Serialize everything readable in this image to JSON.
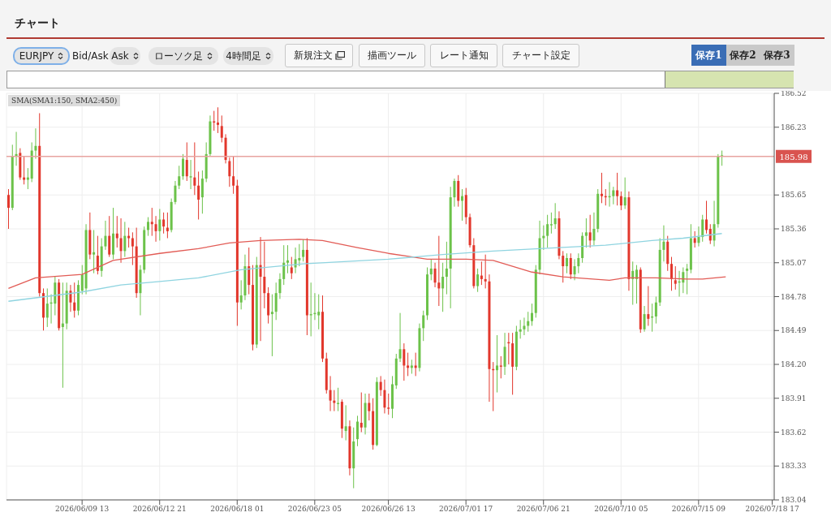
{
  "chart_data": {
    "type": "candlestick",
    "title": "チャート",
    "annotations": [
      "EURJPY",
      "Bid/Ask",
      "Ask",
      "ローソク足",
      "4時間足",
      "新規注文",
      "描画ツール",
      "レート通知",
      "チャート設定",
      "保存1",
      "保存2",
      "保存3",
      "SMA(SMA1:150, SMA2:450)"
    ],
    "categories": [
      null,
      null,
      null,
      null,
      null,
      null,
      null,
      null,
      null,
      null,
      null,
      null,
      null,
      null,
      null,
      null,
      null,
      null,
      null,
      "2026/06/09 13",
      null,
      null,
      null,
      null,
      null,
      null,
      null,
      null,
      null,
      null,
      null,
      null,
      null,
      null,
      null,
      null,
      null,
      null,
      null,
      "2026/06/12 21",
      null,
      null,
      null,
      null,
      null,
      null,
      null,
      null,
      null,
      null,
      null,
      null,
      null,
      null,
      null,
      null,
      null,
      null,
      null,
      "2026/06/18 01",
      null,
      null,
      null,
      null,
      null,
      null,
      null,
      null,
      null,
      null,
      null,
      null,
      null,
      null,
      null,
      null,
      null,
      null,
      null,
      "2026/06/23 05",
      null,
      null,
      null,
      null,
      null,
      null,
      null,
      null,
      null,
      null,
      null,
      null,
      null,
      null,
      null,
      null,
      null,
      null,
      "2026/06/26 13",
      null,
      null,
      null,
      null,
      null,
      null,
      null,
      null,
      null,
      null,
      null,
      null,
      null,
      null,
      null,
      null,
      null,
      null,
      null,
      "2026/07/01 17",
      null,
      null,
      null,
      null,
      null,
      null,
      null,
      null,
      null,
      null,
      null,
      null,
      null,
      null,
      null,
      null,
      null,
      null,
      null,
      "2026/07/06 21",
      null,
      null,
      null,
      null,
      null,
      null,
      null,
      null,
      null,
      null,
      null,
      null,
      null,
      null,
      null,
      null,
      null,
      null,
      null,
      "2026/07/10 05",
      null,
      null,
      null,
      null,
      null,
      null,
      null,
      null,
      null,
      null,
      null,
      null,
      null,
      null,
      null,
      null,
      null,
      null,
      null,
      "2026/07/15 09",
      null,
      null,
      null,
      null,
      null,
      null,
      null,
      null,
      null,
      null,
      null,
      null,
      null,
      null,
      null,
      null,
      null,
      null,
      "2026/07/18 17"
    ],
    "ohlc": [
      [
        185.65,
        185.7,
        185.36,
        185.54
      ],
      [
        185.54,
        186.08,
        185.52,
        185.98
      ],
      [
        185.98,
        186.19,
        185.9,
        186.0
      ],
      [
        186.01,
        186.05,
        185.78,
        185.8
      ],
      [
        185.8,
        185.98,
        185.74,
        185.78
      ],
      [
        185.78,
        185.88,
        185.7,
        185.8
      ],
      [
        185.79,
        186.1,
        185.76,
        186.03
      ],
      [
        186.03,
        186.22,
        185.96,
        186.07
      ],
      [
        186.07,
        186.35,
        184.78,
        184.81
      ],
      [
        184.81,
        184.85,
        184.49,
        184.6
      ],
      [
        184.6,
        184.85,
        184.52,
        184.72
      ],
      [
        184.72,
        184.8,
        184.55,
        184.73
      ],
      [
        184.72,
        184.95,
        184.62,
        184.9
      ],
      [
        184.9,
        184.93,
        184.49,
        184.51
      ],
      [
        184.52,
        184.9,
        184.0,
        184.55
      ],
      [
        184.55,
        184.9,
        184.5,
        184.83
      ],
      [
        184.83,
        184.88,
        184.65,
        184.73
      ],
      [
        184.73,
        184.9,
        184.6,
        184.66
      ],
      [
        184.66,
        184.92,
        184.62,
        184.88
      ],
      [
        184.83,
        185.05,
        184.8,
        184.97
      ],
      [
        184.85,
        185.4,
        184.8,
        185.35
      ],
      [
        185.35,
        185.5,
        185.1,
        185.14
      ],
      [
        185.14,
        185.35,
        184.98,
        185.16
      ],
      [
        185.13,
        185.3,
        184.97,
        185.0
      ],
      [
        185.0,
        185.28,
        184.95,
        185.21
      ],
      [
        185.21,
        185.43,
        185.18,
        185.3
      ],
      [
        185.3,
        185.47,
        185.12,
        185.14
      ],
      [
        185.14,
        185.54,
        185.1,
        185.32
      ],
      [
        185.32,
        185.47,
        185.2,
        185.28
      ],
      [
        185.28,
        185.45,
        185.07,
        185.17
      ],
      [
        185.17,
        185.42,
        185.12,
        185.3
      ],
      [
        185.3,
        185.37,
        185.2,
        185.28
      ],
      [
        185.28,
        185.33,
        185.05,
        185.21
      ],
      [
        185.21,
        185.37,
        184.77,
        184.81
      ],
      [
        184.81,
        185.05,
        184.62,
        185.01
      ],
      [
        185.01,
        185.38,
        184.98,
        185.35
      ],
      [
        185.35,
        185.46,
        185.3,
        185.42
      ],
      [
        185.42,
        185.54,
        185.3,
        185.4
      ],
      [
        185.4,
        185.47,
        185.25,
        185.34
      ],
      [
        185.34,
        185.53,
        185.26,
        185.44
      ],
      [
        185.44,
        185.5,
        185.32,
        185.38
      ],
      [
        185.37,
        185.5,
        185.28,
        185.34
      ],
      [
        185.35,
        185.62,
        185.33,
        185.59
      ],
      [
        185.59,
        185.77,
        185.57,
        185.73
      ],
      [
        185.73,
        185.9,
        185.7,
        185.81
      ],
      [
        185.81,
        186.0,
        185.78,
        185.96
      ],
      [
        185.95,
        186.1,
        185.77,
        185.81
      ],
      [
        185.8,
        185.95,
        185.7,
        185.81
      ],
      [
        185.8,
        186.1,
        185.65,
        185.73
      ],
      [
        185.73,
        185.85,
        185.44,
        185.61
      ],
      [
        185.63,
        185.86,
        185.49,
        185.79
      ],
      [
        185.79,
        186.1,
        185.76,
        186.0
      ],
      [
        186.0,
        186.33,
        185.98,
        186.28
      ],
      [
        186.28,
        186.37,
        186.2,
        186.27
      ],
      [
        186.27,
        186.4,
        186.18,
        186.25
      ],
      [
        186.24,
        186.33,
        186.1,
        186.14
      ],
      [
        186.14,
        186.17,
        185.92,
        185.95
      ],
      [
        185.94,
        185.97,
        185.72,
        185.81
      ],
      [
        185.81,
        185.98,
        185.66,
        185.73
      ],
      [
        185.73,
        185.78,
        184.53,
        184.73
      ],
      [
        184.73,
        184.92,
        184.67,
        184.79
      ],
      [
        184.79,
        185.14,
        184.75,
        185.04
      ],
      [
        185.04,
        185.2,
        184.8,
        184.88
      ],
      [
        184.88,
        185.05,
        184.32,
        184.37
      ],
      [
        184.37,
        185.12,
        184.34,
        185.05
      ],
      [
        185.05,
        185.29,
        184.4,
        184.95
      ],
      [
        184.95,
        185.25,
        184.68,
        184.81
      ],
      [
        184.81,
        184.86,
        184.55,
        184.62
      ],
      [
        184.63,
        184.8,
        184.27,
        184.65
      ],
      [
        184.65,
        184.9,
        184.58,
        184.81
      ],
      [
        184.81,
        184.98,
        184.76,
        184.93
      ],
      [
        184.93,
        185.22,
        184.88,
        185.07
      ],
      [
        185.07,
        185.22,
        184.98,
        185.09
      ],
      [
        185.03,
        185.12,
        184.93,
        184.98
      ],
      [
        185.03,
        185.2,
        184.98,
        185.1
      ],
      [
        185.09,
        185.23,
        185.04,
        185.11
      ],
      [
        185.12,
        185.27,
        185.08,
        185.18
      ],
      [
        185.18,
        185.28,
        184.45,
        184.62
      ],
      [
        184.62,
        184.9,
        184.44,
        184.63
      ],
      [
        184.63,
        184.81,
        184.58,
        184.64
      ],
      [
        184.62,
        184.8,
        184.5,
        184.65
      ],
      [
        184.65,
        184.79,
        184.22,
        184.25
      ],
      [
        184.25,
        184.3,
        183.95,
        183.98
      ],
      [
        183.98,
        184.1,
        183.8,
        183.89
      ],
      [
        183.89,
        183.98,
        183.8,
        183.87
      ],
      [
        183.86,
        184.0,
        183.8,
        183.87
      ],
      [
        183.88,
        183.9,
        183.57,
        183.65
      ],
      [
        183.63,
        183.85,
        183.55,
        183.67
      ],
      [
        183.67,
        183.72,
        183.25,
        183.31
      ],
      [
        183.31,
        183.66,
        183.14,
        183.54
      ],
      [
        183.56,
        183.76,
        183.5,
        183.71
      ],
      [
        183.7,
        183.96,
        183.62,
        183.66
      ],
      [
        183.66,
        183.95,
        183.6,
        183.87
      ],
      [
        183.87,
        183.95,
        183.72,
        183.8
      ],
      [
        183.8,
        183.91,
        183.47,
        183.51
      ],
      [
        183.51,
        184.09,
        183.5,
        184.05
      ],
      [
        184.05,
        184.1,
        183.93,
        183.98
      ],
      [
        183.98,
        184.07,
        183.78,
        183.83
      ],
      [
        183.83,
        183.95,
        183.77,
        183.82
      ],
      [
        183.82,
        184.1,
        183.74,
        184.03
      ],
      [
        184.02,
        184.29,
        183.99,
        184.25
      ],
      [
        184.25,
        184.64,
        184.22,
        184.33
      ],
      [
        184.33,
        184.38,
        184.06,
        184.19
      ],
      [
        184.19,
        184.3,
        184.1,
        184.17
      ],
      [
        184.17,
        184.24,
        184.12,
        184.19
      ],
      [
        184.19,
        184.3,
        184.1,
        184.17
      ],
      [
        184.17,
        184.55,
        184.14,
        184.51
      ],
      [
        184.51,
        184.66,
        184.4,
        184.62
      ],
      [
        184.62,
        185.03,
        184.58,
        184.97
      ],
      [
        184.97,
        185.1,
        184.92,
        185.02
      ],
      [
        185.02,
        185.07,
        184.86,
        184.9
      ],
      [
        184.9,
        185.3,
        184.7,
        184.85
      ],
      [
        184.85,
        185.07,
        184.65,
        184.95
      ],
      [
        184.95,
        185.25,
        184.8,
        185.02
      ],
      [
        185.02,
        185.72,
        184.68,
        185.63
      ],
      [
        185.63,
        185.79,
        185.55,
        185.77
      ],
      [
        185.77,
        185.82,
        185.55,
        185.6
      ],
      [
        185.6,
        185.7,
        185.43,
        185.64
      ],
      [
        185.65,
        185.71,
        185.4,
        185.46
      ],
      [
        185.46,
        185.49,
        185.2,
        185.22
      ],
      [
        185.22,
        185.28,
        184.85,
        184.87
      ],
      [
        184.87,
        185.02,
        184.82,
        184.97
      ],
      [
        184.96,
        185.08,
        184.88,
        184.93
      ],
      [
        184.93,
        185.14,
        184.85,
        184.91
      ],
      [
        184.91,
        184.97,
        183.88,
        184.16
      ],
      [
        184.16,
        184.22,
        183.8,
        184.15
      ],
      [
        184.15,
        184.45,
        183.96,
        184.19
      ],
      [
        184.19,
        184.27,
        184.08,
        184.18
      ],
      [
        184.18,
        184.47,
        184.11,
        184.35
      ],
      [
        184.39,
        184.47,
        184.2,
        184.38
      ],
      [
        184.38,
        184.47,
        183.94,
        184.18
      ],
      [
        184.18,
        184.53,
        184.15,
        184.48
      ],
      [
        184.48,
        184.58,
        184.42,
        184.5
      ],
      [
        184.5,
        184.6,
        184.45,
        184.53
      ],
      [
        184.53,
        184.65,
        184.48,
        184.57
      ],
      [
        184.57,
        184.72,
        184.53,
        184.64
      ],
      [
        184.64,
        185.05,
        184.6,
        185.01
      ],
      [
        185.01,
        185.43,
        184.97,
        185.28
      ],
      [
        185.28,
        185.39,
        185.18,
        185.3
      ],
      [
        185.3,
        185.48,
        185.2,
        185.4
      ],
      [
        185.39,
        185.5,
        185.32,
        185.4
      ],
      [
        185.4,
        185.58,
        185.36,
        185.45
      ],
      [
        185.45,
        185.51,
        185.1,
        185.13
      ],
      [
        185.13,
        185.17,
        184.9,
        185.04
      ],
      [
        185.04,
        185.15,
        184.98,
        185.11
      ],
      [
        185.11,
        185.15,
        184.93,
        184.97
      ],
      [
        184.97,
        185.1,
        184.92,
        185.04
      ],
      [
        185.04,
        185.15,
        184.98,
        185.11
      ],
      [
        185.11,
        185.33,
        185.07,
        185.3
      ],
      [
        185.3,
        185.45,
        185.2,
        185.33
      ],
      [
        185.33,
        185.48,
        185.2,
        185.26
      ],
      [
        185.26,
        185.5,
        185.22,
        185.36
      ],
      [
        185.36,
        185.7,
        185.33,
        185.66
      ],
      [
        185.66,
        185.84,
        185.58,
        185.64
      ],
      [
        185.64,
        185.7,
        185.56,
        185.63
      ],
      [
        185.63,
        185.76,
        185.55,
        185.64
      ],
      [
        185.64,
        185.72,
        185.57,
        185.69
      ],
      [
        185.69,
        185.84,
        185.56,
        185.64
      ],
      [
        185.64,
        185.68,
        185.52,
        185.56
      ],
      [
        185.56,
        185.8,
        185.53,
        185.63
      ],
      [
        185.63,
        185.68,
        184.83,
        184.93
      ],
      [
        184.93,
        185.08,
        184.71,
        185.0
      ],
      [
        184.93,
        185.05,
        184.72,
        185.01
      ],
      [
        185.01,
        185.03,
        184.47,
        184.5
      ],
      [
        184.5,
        184.7,
        184.48,
        184.63
      ],
      [
        184.63,
        184.87,
        184.53,
        184.59
      ],
      [
        184.6,
        184.72,
        184.48,
        184.61
      ],
      [
        184.61,
        184.78,
        184.55,
        184.73
      ],
      [
        184.73,
        185.28,
        184.7,
        185.18
      ],
      [
        185.18,
        185.39,
        185.08,
        185.25
      ],
      [
        185.25,
        185.3,
        185.0,
        185.06
      ],
      [
        185.06,
        185.12,
        184.83,
        184.93
      ],
      [
        184.92,
        185.04,
        184.84,
        184.89
      ],
      [
        184.9,
        185.0,
        184.78,
        184.91
      ],
      [
        184.9,
        185.03,
        184.81,
        184.99
      ],
      [
        185.0,
        185.06,
        184.8,
        185.02
      ],
      [
        185.01,
        185.4,
        184.98,
        185.28
      ],
      [
        185.28,
        185.34,
        185.2,
        185.24
      ],
      [
        185.24,
        185.38,
        185.21,
        185.29
      ],
      [
        185.29,
        185.48,
        185.25,
        185.44
      ],
      [
        185.44,
        185.6,
        185.32,
        185.35
      ],
      [
        185.36,
        185.4,
        185.23,
        185.26
      ],
      [
        185.26,
        185.6,
        185.21,
        185.4
      ],
      [
        185.4,
        186.0,
        185.37,
        185.98
      ],
      [
        185.98,
        186.03,
        185.9,
        185.99
      ],
      null,
      null,
      null,
      null,
      null,
      null,
      null,
      null,
      null,
      null,
      null,
      null,
      null
    ],
    "colors": [
      "#e2372c",
      "#6cc24a",
      "#6cc24a",
      "#e2372c",
      "#e2372c",
      "#6cc24a",
      "#6cc24a",
      "#6cc24a",
      "#e2372c",
      "#e2372c",
      "#6cc24a",
      "#6cc24a",
      "#6cc24a",
      "#e2372c",
      "#6cc24a",
      "#6cc24a",
      "#e2372c",
      "#e2372c",
      "#6cc24a",
      "#6cc24a",
      "#6cc24a",
      "#e2372c",
      "#6cc24a",
      "#e2372c",
      "#6cc24a",
      "#6cc24a",
      "#e2372c",
      "#6cc24a",
      "#e2372c",
      "#e2372c",
      "#6cc24a",
      "#e2372c",
      "#e2372c",
      "#e2372c",
      "#6cc24a",
      "#6cc24a",
      "#6cc24a",
      "#e2372c",
      "#e2372c",
      "#6cc24a",
      "#e2372c",
      "#e2372c",
      "#6cc24a",
      "#6cc24a",
      "#6cc24a",
      "#6cc24a",
      "#e2372c",
      "#6cc24a",
      "#e2372c",
      "#e2372c",
      "#6cc24a",
      "#6cc24a",
      "#6cc24a",
      "#e2372c",
      "#e2372c",
      "#e2372c",
      "#e2372c",
      "#e2372c",
      "#e2372c",
      "#e2372c",
      "#6cc24a",
      "#6cc24a",
      "#e2372c",
      "#e2372c",
      "#6cc24a",
      "#e2372c",
      "#e2372c",
      "#e2372c",
      "#6cc24a",
      "#6cc24a",
      "#6cc24a",
      "#6cc24a",
      "#6cc24a",
      "#e2372c",
      "#6cc24a",
      "#6cc24a",
      "#6cc24a",
      "#e2372c",
      "#6cc24a",
      "#6cc24a",
      "#6cc24a",
      "#e2372c",
      "#e2372c",
      "#e2372c",
      "#e2372c",
      "#6cc24a",
      "#e2372c",
      "#6cc24a",
      "#e2372c",
      "#6cc24a",
      "#6cc24a",
      "#e2372c",
      "#6cc24a",
      "#e2372c",
      "#e2372c",
      "#6cc24a",
      "#e2372c",
      "#e2372c",
      "#e2372c",
      "#6cc24a",
      "#6cc24a",
      "#6cc24a",
      "#e2372c",
      "#e2372c",
      "#6cc24a",
      "#e2372c",
      "#6cc24a",
      "#6cc24a",
      "#6cc24a",
      "#6cc24a",
      "#e2372c",
      "#e2372c",
      "#6cc24a",
      "#6cc24a",
      "#6cc24a",
      "#6cc24a",
      "#e2372c",
      "#6cc24a",
      "#e2372c",
      "#e2372c",
      "#e2372c",
      "#6cc24a",
      "#e2372c",
      "#e2372c",
      "#e2372c",
      "#e2372c",
      "#6cc24a",
      "#e2372c",
      "#6cc24a",
      "#e2372c",
      "#e2372c",
      "#6cc24a",
      "#6cc24a",
      "#6cc24a",
      "#6cc24a",
      "#6cc24a",
      "#6cc24a",
      "#6cc24a",
      "#6cc24a",
      "#6cc24a",
      "#6cc24a",
      "#6cc24a",
      "#e2372c",
      "#e2372c",
      "#6cc24a",
      "#e2372c",
      "#6cc24a",
      "#6cc24a",
      "#6cc24a",
      "#6cc24a",
      "#e2372c",
      "#6cc24a",
      "#6cc24a",
      "#e2372c",
      "#e2372c",
      "#6cc24a",
      "#6cc24a",
      "#e2372c",
      "#e2372c",
      "#6cc24a",
      "#e2372c",
      "#6cc24a",
      "#6cc24a",
      "#e2372c",
      "#6cc24a",
      "#e2372c",
      "#6cc24a",
      "#6cc24a",
      "#6cc24a",
      "#6cc24a",
      "#e2372c",
      "#e2372c",
      "#e2372c",
      "#6cc24a",
      "#6cc24a",
      "#6cc24a",
      "#6cc24a",
      "#e2372c",
      "#6cc24a",
      "#6cc24a",
      "#e2372c",
      "#e2372c",
      "#6cc24a",
      "#6cc24a",
      "#6cc24a",
      null,
      null,
      null,
      null,
      null,
      null,
      null,
      null,
      null,
      null,
      null,
      null,
      null
    ],
    "series": [
      {
        "type": "line",
        "color": "#e25b55",
        "values": [
          184.85,
          null,
          null,
          null,
          null,
          null,
          null,
          184.94,
          null,
          null,
          null,
          null,
          null,
          null,
          null,
          null,
          null,
          null,
          null,
          184.97,
          null,
          null,
          null,
          null,
          null,
          null,
          null,
          185.09,
          null,
          null,
          null,
          null,
          null,
          null,
          null,
          null,
          null,
          null,
          null,
          185.15,
          null,
          null,
          null,
          null,
          null,
          null,
          null,
          null,
          null,
          185.19,
          null,
          null,
          null,
          null,
          null,
          null,
          null,
          185.24,
          null,
          null,
          null,
          null,
          null,
          null,
          null,
          185.26,
          null,
          null,
          null,
          null,
          null,
          null,
          null,
          null,
          null,
          185.27,
          null,
          null,
          null,
          null,
          null,
          185.26,
          null,
          null,
          null,
          null,
          null,
          null,
          null,
          null,
          185.2,
          null,
          null,
          null,
          null,
          null,
          null,
          null,
          185.15,
          null,
          null,
          null,
          null,
          null,
          null,
          null,
          null,
          null,
          185.1,
          null,
          null,
          null,
          null,
          null,
          null,
          null,
          null,
          null,
          185.1,
          null,
          null,
          null,
          null,
          null,
          null,
          185.09,
          null,
          null,
          null,
          null,
          null,
          null,
          null,
          null,
          null,
          184.99,
          null,
          null,
          null,
          null,
          null,
          null,
          null,
          184.95,
          null,
          null,
          null,
          null,
          null,
          null,
          null,
          null,
          null,
          null,
          null,
          184.92,
          null,
          null,
          null,
          184.94,
          null,
          null,
          null,
          null,
          null,
          null,
          null,
          184.94,
          null,
          null,
          null,
          null,
          null,
          null,
          null,
          184.93,
          null,
          null,
          null,
          184.93,
          null,
          null,
          null,
          null,
          null,
          184.95,
          null,
          null,
          null,
          null,
          null,
          null,
          null,
          null,
          null,
          null,
          null,
          null
        ]
      },
      {
        "type": "line",
        "color": "#8fd4e0",
        "values": [
          184.74,
          null,
          null,
          null,
          null,
          null,
          null,
          null,
          null,
          null,
          null,
          null,
          null,
          null,
          null,
          null,
          null,
          null,
          null,
          184.82,
          null,
          null,
          null,
          null,
          null,
          null,
          null,
          null,
          null,
          184.88,
          null,
          null,
          null,
          null,
          null,
          null,
          null,
          null,
          null,
          184.91,
          null,
          null,
          null,
          null,
          null,
          null,
          null,
          null,
          null,
          184.94,
          null,
          null,
          null,
          null,
          null,
          null,
          null,
          null,
          null,
          null,
          185.01,
          null,
          null,
          null,
          null,
          null,
          null,
          null,
          null,
          null,
          null,
          null,
          null,
          null,
          null,
          null,
          185.06,
          null,
          null,
          null,
          null,
          null,
          null,
          null,
          null,
          null,
          null,
          null,
          null,
          null,
          null,
          null,
          null,
          null,
          null,
          null,
          null,
          null,
          185.1,
          null,
          null,
          null,
          null,
          null,
          null,
          null,
          null,
          null,
          null,
          null,
          null,
          null,
          185.14,
          null,
          null,
          null,
          null,
          null,
          null,
          null,
          null,
          null,
          null,
          null,
          null,
          185.17,
          null,
          null,
          null,
          null,
          null,
          null,
          null,
          null,
          null,
          null,
          null,
          null,
          null,
          null,
          null,
          null,
          185.2,
          null,
          null,
          null,
          null,
          null,
          null,
          null,
          null,
          null,
          null,
          null,
          185.22,
          null,
          null,
          null,
          null,
          null,
          null,
          null,
          null,
          null,
          null,
          null,
          185.26,
          null,
          null,
          null,
          null,
          null,
          null,
          null,
          185.28,
          null,
          null,
          null,
          null,
          null,
          null,
          null,
          null,
          null,
          185.32,
          null,
          null,
          null,
          null,
          null,
          null,
          null,
          null,
          null,
          null,
          null,
          null,
          null
        ]
      }
    ],
    "ylim": [
      183.04,
      186.52
    ],
    "yticks": [
      186.52,
      186.23,
      185.65,
      185.36,
      185.07,
      184.78,
      184.49,
      {
        "value": 184.2,
        "label": "184.20"
      },
      183.91,
      183.62,
      183.33,
      183.04
    ],
    "ref_lines": [
      {
        "axis": "y",
        "value": 185.98,
        "label": "185.98",
        "color": "#e8a4a0"
      }
    ],
    "grid": true
  }
}
